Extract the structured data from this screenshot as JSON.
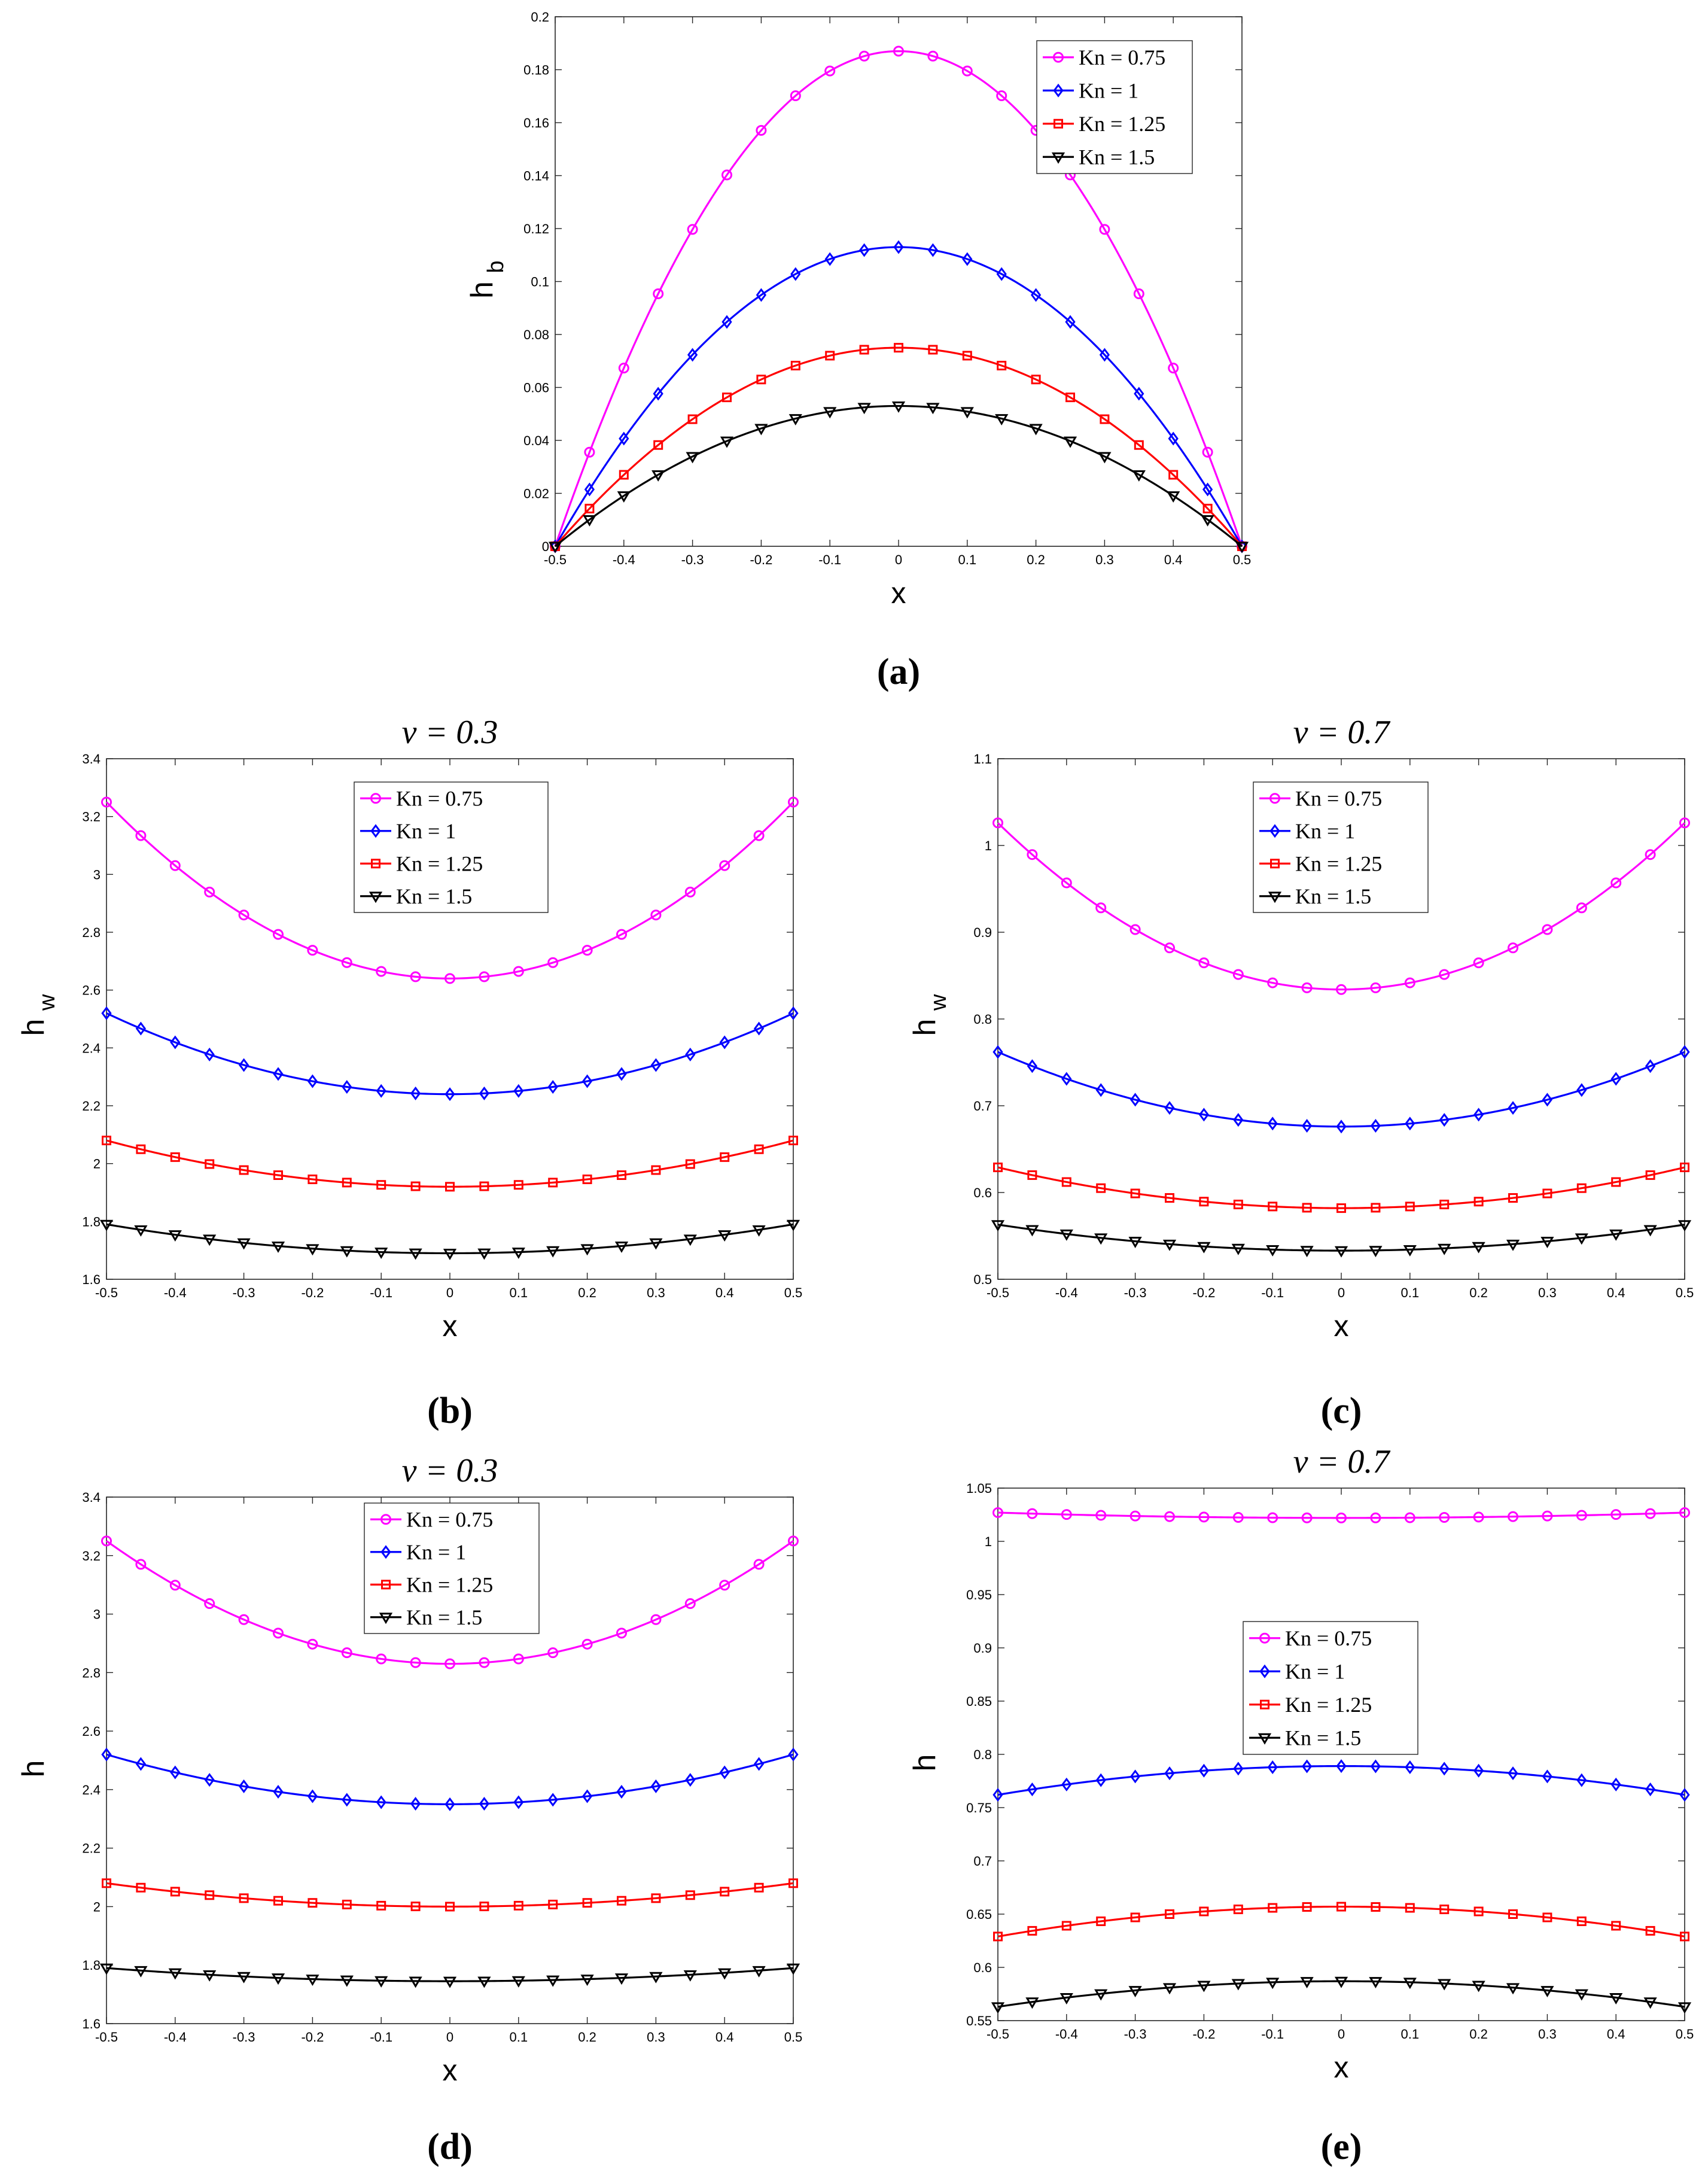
{
  "chart_data": [
    {
      "id": "a",
      "type": "line",
      "panel_label": "(a)",
      "title": "",
      "xlabel": "x",
      "ylabel": "h",
      "ylabel_sub": "b",
      "xlim": [
        -0.5,
        0.5
      ],
      "ylim": [
        0,
        0.2
      ],
      "xticks": [
        -0.5,
        -0.4,
        -0.3,
        -0.2,
        -0.1,
        0,
        0.1,
        0.2,
        0.3,
        0.4,
        0.5
      ],
      "xtick_labels": [
        "-0.5",
        "-0.4",
        "-0.3",
        "-0.2",
        "-0.1",
        "0",
        "0.1",
        "0.2",
        "0.3",
        "0.4",
        "0.5"
      ],
      "yticks": [
        0,
        0.02,
        0.04,
        0.06,
        0.08,
        0.1,
        0.12,
        0.14,
        0.16,
        0.18,
        0.2
      ],
      "ytick_labels": [
        "0",
        "0.02",
        "0.04",
        "0.06",
        "0.08",
        "0.1",
        "0.12",
        "0.14",
        "0.16",
        "0.18",
        "0.2"
      ],
      "legend_position": "top-right",
      "series": [
        {
          "name": "Kn = 0.75",
          "color": "#ff00ff",
          "marker": "circle",
          "shape": "parabola",
          "values": [
            0.0,
            0.187,
            0.187
          ]
        },
        {
          "name": "Kn = 1",
          "color": "#0000ff",
          "marker": "diamond",
          "shape": "parabola",
          "values": [
            0.0,
            0.113,
            0.113
          ]
        },
        {
          "name": "Kn = 1.25",
          "color": "#ff0000",
          "marker": "square",
          "shape": "parabola",
          "values": [
            0.0,
            0.075,
            0.075
          ]
        },
        {
          "name": "Kn = 1.5",
          "color": "#000000",
          "marker": "triangle-down",
          "shape": "parabola",
          "values": [
            0.0,
            0.053,
            0.053
          ]
        }
      ]
    },
    {
      "id": "b",
      "type": "line",
      "panel_label": "(b)",
      "title": "ν = 0.3",
      "xlabel": "x",
      "ylabel": "h",
      "ylabel_sub": "w",
      "xlim": [
        -0.5,
        0.5
      ],
      "ylim": [
        1.6,
        3.4
      ],
      "xticks": [
        -0.5,
        -0.4,
        -0.3,
        -0.2,
        -0.1,
        0,
        0.1,
        0.2,
        0.3,
        0.4,
        0.5
      ],
      "xtick_labels": [
        "-0.5",
        "-0.4",
        "-0.3",
        "-0.2",
        "-0.1",
        "0",
        "0.1",
        "0.2",
        "0.3",
        "0.4",
        "0.5"
      ],
      "yticks": [
        1.6,
        1.8,
        2,
        2.2,
        2.4,
        2.6,
        2.8,
        3,
        3.2,
        3.4
      ],
      "ytick_labels": [
        "1.6",
        "1.8",
        "2",
        "2.2",
        "2.4",
        "2.6",
        "2.8",
        "3",
        "3.2",
        "3.4"
      ],
      "legend_position": "top-center",
      "series": [
        {
          "name": "Kn = 0.75",
          "color": "#ff00ff",
          "marker": "circle",
          "shape": "parabola",
          "values": [
            3.25,
            2.64,
            2.64
          ]
        },
        {
          "name": "Kn = 1",
          "color": "#0000ff",
          "marker": "diamond",
          "shape": "parabola",
          "values": [
            2.52,
            2.24,
            2.24
          ]
        },
        {
          "name": "Kn = 1.25",
          "color": "#ff0000",
          "marker": "square",
          "shape": "parabola",
          "values": [
            2.08,
            1.92,
            1.92
          ]
        },
        {
          "name": "Kn = 1.5",
          "color": "#000000",
          "marker": "triangle-down",
          "shape": "parabola",
          "values": [
            1.79,
            1.69,
            1.69
          ]
        }
      ]
    },
    {
      "id": "c",
      "type": "line",
      "panel_label": "(c)",
      "title": "ν = 0.7",
      "xlabel": "x",
      "ylabel": "h",
      "ylabel_sub": "w",
      "xlim": [
        -0.5,
        0.5
      ],
      "ylim": [
        0.5,
        1.1
      ],
      "xticks": [
        -0.5,
        -0.4,
        -0.3,
        -0.2,
        -0.1,
        0,
        0.1,
        0.2,
        0.3,
        0.4,
        0.5
      ],
      "xtick_labels": [
        "-0.5",
        "-0.4",
        "-0.3",
        "-0.2",
        "-0.1",
        "0",
        "0.1",
        "0.2",
        "0.3",
        "0.4",
        "0.5"
      ],
      "yticks": [
        0.5,
        0.6,
        0.7,
        0.8,
        0.9,
        1,
        1.1
      ],
      "ytick_labels": [
        "0.5",
        "0.6",
        "0.7",
        "0.8",
        "0.9",
        "1",
        "1.1"
      ],
      "legend_position": "top-center",
      "series": [
        {
          "name": "Kn = 0.75",
          "color": "#ff00ff",
          "marker": "circle",
          "shape": "parabola",
          "values": [
            1.026,
            0.834,
            0.834
          ]
        },
        {
          "name": "Kn = 1",
          "color": "#0000ff",
          "marker": "diamond",
          "shape": "parabola",
          "values": [
            0.762,
            0.676,
            0.676
          ]
        },
        {
          "name": "Kn = 1.25",
          "color": "#ff0000",
          "marker": "square",
          "shape": "parabola",
          "values": [
            0.629,
            0.582,
            0.582
          ]
        },
        {
          "name": "Kn = 1.5",
          "color": "#000000",
          "marker": "triangle-down",
          "shape": "parabola",
          "values": [
            0.563,
            0.533,
            0.533
          ]
        }
      ]
    },
    {
      "id": "d",
      "type": "line",
      "panel_label": "(d)",
      "title": "ν = 0.3",
      "xlabel": "x",
      "ylabel": "h",
      "ylabel_sub": "",
      "xlim": [
        -0.5,
        0.5
      ],
      "ylim": [
        1.6,
        3.4
      ],
      "xticks": [
        -0.5,
        -0.4,
        -0.3,
        -0.2,
        -0.1,
        0,
        0.1,
        0.2,
        0.3,
        0.4,
        0.5
      ],
      "xtick_labels": [
        "-0.5",
        "-0.4",
        "-0.3",
        "-0.2",
        "-0.1",
        "0",
        "0.1",
        "0.2",
        "0.3",
        "0.4",
        "0.5"
      ],
      "yticks": [
        1.6,
        1.8,
        2,
        2.2,
        2.4,
        2.6,
        2.8,
        3,
        3.2,
        3.4
      ],
      "ytick_labels": [
        "1.6",
        "1.8",
        "2",
        "2.2",
        "2.4",
        "2.6",
        "2.8",
        "3",
        "3.2",
        "3.4"
      ],
      "legend_position": "top-center",
      "series": [
        {
          "name": "Kn = 0.75",
          "color": "#ff00ff",
          "marker": "circle",
          "shape": "parabola",
          "values": [
            3.25,
            2.83,
            2.83
          ]
        },
        {
          "name": "Kn = 1",
          "color": "#0000ff",
          "marker": "diamond",
          "shape": "parabola",
          "values": [
            2.52,
            2.35,
            2.35
          ]
        },
        {
          "name": "Kn = 1.25",
          "color": "#ff0000",
          "marker": "square",
          "shape": "parabola",
          "values": [
            2.08,
            2.0,
            2.0
          ]
        },
        {
          "name": "Kn = 1.5",
          "color": "#000000",
          "marker": "triangle-down",
          "shape": "parabola",
          "values": [
            1.79,
            1.745,
            1.745
          ]
        }
      ]
    },
    {
      "id": "e",
      "type": "line",
      "panel_label": "(e)",
      "title": "ν = 0.7",
      "xlabel": "x",
      "ylabel": "h",
      "ylabel_sub": "",
      "xlim": [
        -0.5,
        0.5
      ],
      "ylim": [
        0.55,
        1.05
      ],
      "xticks": [
        -0.5,
        -0.4,
        -0.3,
        -0.2,
        -0.1,
        0,
        0.1,
        0.2,
        0.3,
        0.4,
        0.5
      ],
      "xtick_labels": [
        "-0.5",
        "-0.4",
        "-0.3",
        "-0.2",
        "-0.1",
        "0",
        "0.1",
        "0.2",
        "0.3",
        "0.4",
        "0.5"
      ],
      "yticks": [
        0.55,
        0.6,
        0.65,
        0.7,
        0.75,
        0.8,
        0.85,
        0.9,
        0.95,
        1,
        1.05
      ],
      "ytick_labels": [
        "0.55",
        "0.6",
        "0.65",
        "0.7",
        "0.75",
        "0.8",
        "0.85",
        "0.9",
        "0.95",
        "1",
        "1.05"
      ],
      "legend_position": "middle-left",
      "series": [
        {
          "name": "Kn = 0.75",
          "color": "#ff00ff",
          "marker": "circle",
          "shape": "parabola",
          "values": [
            1.027,
            1.022,
            1.022
          ]
        },
        {
          "name": "Kn = 1",
          "color": "#0000ff",
          "marker": "diamond",
          "shape": "parabola",
          "values": [
            0.762,
            0.789,
            0.789
          ]
        },
        {
          "name": "Kn = 1.25",
          "color": "#ff0000",
          "marker": "square",
          "shape": "parabola",
          "values": [
            0.629,
            0.657,
            0.657
          ]
        },
        {
          "name": "Kn = 1.5",
          "color": "#000000",
          "marker": "triangle-down",
          "shape": "parabola",
          "values": [
            0.563,
            0.587,
            0.587
          ]
        }
      ]
    }
  ]
}
